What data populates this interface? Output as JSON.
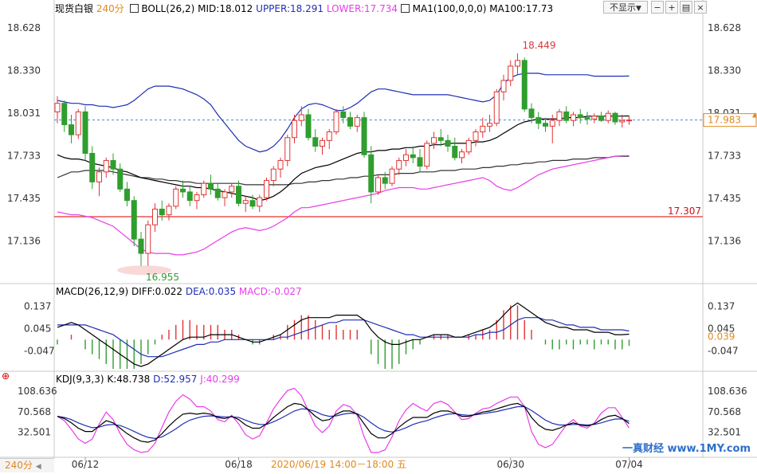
{
  "toolbar": {
    "symbol": "现货白银",
    "period": "240分",
    "hide_btn": "不显示",
    "hide_arrow": "▼"
  },
  "main_indicator": {
    "boll_label": "BOLL(26,2)",
    "mid": "MID:18.012",
    "upper": "UPPER:18.291",
    "lower": "LOWER:17.734",
    "ma_label": "MA1(100,0,0,0)",
    "ma100": "MA100:17.73",
    "colors": {
      "mid": "#000000",
      "upper": "#1f2fb5",
      "lower": "#e83de8",
      "ma": "#333333"
    }
  },
  "macd_indicator": {
    "label": "MACD(26,12,9)",
    "diff": "DIFF:0.022",
    "dea": "DEA:0.035",
    "macd": "MACD:-0.027",
    "current": "0.039"
  },
  "kdj_indicator": {
    "label": "KDJ(9,3,3)",
    "k": "K:48.738",
    "d": "D:52.957",
    "j": "J:40.299"
  },
  "bottom": {
    "period_tab": "240分",
    "crosshair_time": "2020/06/19 14:00－18:00 五",
    "logo": "一真财经 www.1MY.com"
  },
  "chart_data": [
    {
      "type": "candlestick",
      "name": "price",
      "ylim": [
        16.9,
        18.7
      ],
      "y_ticks": [
        18.628,
        18.33,
        18.031,
        17.733,
        17.435,
        17.136
      ],
      "current_price": 17.983,
      "hline": 17.307,
      "hline_label": "17.307",
      "high_label": "18.449",
      "low_label": "16.955",
      "x_labels": [
        {
          "i": 4,
          "label": "06/12"
        },
        {
          "i": 26,
          "label": "06/18"
        },
        {
          "i": 65,
          "label": "06/30"
        },
        {
          "i": 82,
          "label": "07/04"
        }
      ],
      "ohlc": [
        [
          18.04,
          18.15,
          17.96,
          18.1
        ],
        [
          18.1,
          18.12,
          17.9,
          17.95
        ],
        [
          17.95,
          18.02,
          17.82,
          17.88
        ],
        [
          17.88,
          18.06,
          17.85,
          18.04
        ],
        [
          18.04,
          18.08,
          17.7,
          17.75
        ],
        [
          17.75,
          17.8,
          17.5,
          17.55
        ],
        [
          17.55,
          17.65,
          17.45,
          17.62
        ],
        [
          17.62,
          17.72,
          17.58,
          17.7
        ],
        [
          17.7,
          17.75,
          17.6,
          17.64
        ],
        [
          17.64,
          17.68,
          17.48,
          17.5
        ],
        [
          17.5,
          17.55,
          17.38,
          17.42
        ],
        [
          17.42,
          17.45,
          17.1,
          17.15
        ],
        [
          17.15,
          17.2,
          16.96,
          17.05
        ],
        [
          17.05,
          17.28,
          16.96,
          17.25
        ],
        [
          17.25,
          17.4,
          17.2,
          17.36
        ],
        [
          17.36,
          17.42,
          17.28,
          17.32
        ],
        [
          17.32,
          17.4,
          17.28,
          17.38
        ],
        [
          17.38,
          17.52,
          17.36,
          17.5
        ],
        [
          17.5,
          17.56,
          17.44,
          17.48
        ],
        [
          17.48,
          17.52,
          17.38,
          17.42
        ],
        [
          17.42,
          17.48,
          17.36,
          17.46
        ],
        [
          17.46,
          17.56,
          17.44,
          17.54
        ],
        [
          17.54,
          17.6,
          17.46,
          17.5
        ],
        [
          17.5,
          17.54,
          17.42,
          17.44
        ],
        [
          17.44,
          17.5,
          17.38,
          17.48
        ],
        [
          17.48,
          17.54,
          17.44,
          17.52
        ],
        [
          17.52,
          17.56,
          17.38,
          17.4
        ],
        [
          17.4,
          17.45,
          17.34,
          17.42
        ],
        [
          17.42,
          17.46,
          17.36,
          17.38
        ],
        [
          17.38,
          17.46,
          17.34,
          17.44
        ],
        [
          17.44,
          17.58,
          17.42,
          17.56
        ],
        [
          17.56,
          17.66,
          17.52,
          17.64
        ],
        [
          17.64,
          17.72,
          17.58,
          17.7
        ],
        [
          17.7,
          17.88,
          17.66,
          17.86
        ],
        [
          17.86,
          18.02,
          17.82,
          17.98
        ],
        [
          17.98,
          18.08,
          17.94,
          18.02
        ],
        [
          18.02,
          18.06,
          17.84,
          17.86
        ],
        [
          17.86,
          17.92,
          17.76,
          17.8
        ],
        [
          17.8,
          17.86,
          17.74,
          17.84
        ],
        [
          17.84,
          17.92,
          17.78,
          17.9
        ],
        [
          17.9,
          18.06,
          17.88,
          18.04
        ],
        [
          18.04,
          18.08,
          17.96,
          18.0
        ],
        [
          18.0,
          18.04,
          17.92,
          17.94
        ],
        [
          17.94,
          18.02,
          17.9,
          18.0
        ],
        [
          18.0,
          18.04,
          17.72,
          17.74
        ],
        [
          17.74,
          17.8,
          17.4,
          17.48
        ],
        [
          17.48,
          17.6,
          17.46,
          17.58
        ],
        [
          17.58,
          17.62,
          17.5,
          17.54
        ],
        [
          17.54,
          17.66,
          17.52,
          17.64
        ],
        [
          17.64,
          17.72,
          17.6,
          17.7
        ],
        [
          17.7,
          17.78,
          17.66,
          17.74
        ],
        [
          17.74,
          17.8,
          17.68,
          17.72
        ],
        [
          17.72,
          17.78,
          17.62,
          17.66
        ],
        [
          17.66,
          17.84,
          17.64,
          17.82
        ],
        [
          17.82,
          17.9,
          17.78,
          17.86
        ],
        [
          17.86,
          17.92,
          17.8,
          17.84
        ],
        [
          17.84,
          17.88,
          17.76,
          17.8
        ],
        [
          17.8,
          17.86,
          17.7,
          17.72
        ],
        [
          17.72,
          17.78,
          17.68,
          17.76
        ],
        [
          17.76,
          17.86,
          17.74,
          17.84
        ],
        [
          17.84,
          17.92,
          17.8,
          17.9
        ],
        [
          17.9,
          18.0,
          17.86,
          17.94
        ],
        [
          17.94,
          18.02,
          17.9,
          17.96
        ],
        [
          17.96,
          18.2,
          17.94,
          18.18
        ],
        [
          18.18,
          18.3,
          18.12,
          18.26
        ],
        [
          18.26,
          18.4,
          18.22,
          18.36
        ],
        [
          18.36,
          18.449,
          18.3,
          18.4
        ],
        [
          18.4,
          18.42,
          18.04,
          18.06
        ],
        [
          18.06,
          18.1,
          17.96,
          18.0
        ],
        [
          18.0,
          18.04,
          17.92,
          17.96
        ],
        [
          17.96,
          18.0,
          17.9,
          17.94
        ],
        [
          17.94,
          18.02,
          17.82,
          17.98
        ],
        [
          17.98,
          18.06,
          17.94,
          18.04
        ],
        [
          18.04,
          18.08,
          17.96,
          17.98
        ],
        [
          17.98,
          18.04,
          17.94,
          18.02
        ],
        [
          18.02,
          18.06,
          17.96,
          18.0
        ],
        [
          18.0,
          18.04,
          17.95,
          17.99
        ],
        [
          17.99,
          18.03,
          17.96,
          18.01
        ],
        [
          18.01,
          18.04,
          17.97,
          17.98
        ],
        [
          17.98,
          18.05,
          17.96,
          18.03
        ],
        [
          18.03,
          18.04,
          17.95,
          17.97
        ],
        [
          17.97,
          18.02,
          17.93,
          17.98
        ],
        [
          17.98,
          18.01,
          17.95,
          17.983
        ]
      ],
      "mid": [
        17.74,
        17.72,
        17.71,
        17.71,
        17.7,
        17.68,
        17.67,
        17.66,
        17.65,
        17.63,
        17.62,
        17.6,
        17.58,
        17.57,
        17.56,
        17.55,
        17.54,
        17.53,
        17.52,
        17.52,
        17.51,
        17.51,
        17.5,
        17.49,
        17.48,
        17.47,
        17.46,
        17.45,
        17.44,
        17.42,
        17.43,
        17.45,
        17.48,
        17.52,
        17.57,
        17.61,
        17.63,
        17.65,
        17.66,
        17.67,
        17.69,
        17.71,
        17.73,
        17.75,
        17.76,
        17.76,
        17.77,
        17.77,
        17.78,
        17.78,
        17.79,
        17.79,
        17.8,
        17.8,
        17.81,
        17.81,
        17.82,
        17.82,
        17.82,
        17.82,
        17.83,
        17.83,
        17.84,
        17.86,
        17.89,
        17.92,
        17.95,
        17.97,
        17.98,
        17.99,
        17.99,
        17.99,
        17.99,
        18.0,
        18.0,
        18.0,
        18.01,
        18.01,
        18.01,
        18.01,
        18.01,
        18.01,
        18.012
      ],
      "upper": [
        18.12,
        18.11,
        18.1,
        18.1,
        18.09,
        18.09,
        18.08,
        18.08,
        18.07,
        18.08,
        18.09,
        18.12,
        18.16,
        18.2,
        18.22,
        18.22,
        18.22,
        18.21,
        18.2,
        18.18,
        18.16,
        18.13,
        18.09,
        18.02,
        17.96,
        17.9,
        17.84,
        17.8,
        17.78,
        17.76,
        17.77,
        17.8,
        17.85,
        17.92,
        18.0,
        18.06,
        18.09,
        18.1,
        18.09,
        18.07,
        18.05,
        18.05,
        18.07,
        18.1,
        18.14,
        18.18,
        18.2,
        18.2,
        18.19,
        18.18,
        18.17,
        18.16,
        18.16,
        18.16,
        18.16,
        18.16,
        18.16,
        18.15,
        18.14,
        18.13,
        18.12,
        18.11,
        18.12,
        18.16,
        18.24,
        18.28,
        18.3,
        18.31,
        18.31,
        18.31,
        18.3,
        18.3,
        18.3,
        18.3,
        18.3,
        18.3,
        18.3,
        18.29,
        18.29,
        18.29,
        18.29,
        18.29,
        18.291
      ],
      "lower": [
        17.34,
        17.33,
        17.32,
        17.32,
        17.31,
        17.3,
        17.28,
        17.26,
        17.24,
        17.2,
        17.16,
        17.12,
        17.08,
        17.06,
        17.05,
        17.05,
        17.05,
        17.04,
        17.04,
        17.05,
        17.06,
        17.08,
        17.11,
        17.14,
        17.17,
        17.2,
        17.22,
        17.23,
        17.22,
        17.21,
        17.22,
        17.24,
        17.27,
        17.3,
        17.34,
        17.37,
        17.37,
        17.38,
        17.39,
        17.4,
        17.41,
        17.42,
        17.43,
        17.44,
        17.45,
        17.46,
        17.47,
        17.49,
        17.5,
        17.51,
        17.51,
        17.51,
        17.5,
        17.5,
        17.51,
        17.52,
        17.53,
        17.54,
        17.55,
        17.56,
        17.57,
        17.58,
        17.56,
        17.52,
        17.5,
        17.49,
        17.51,
        17.54,
        17.57,
        17.6,
        17.62,
        17.64,
        17.65,
        17.66,
        17.67,
        17.68,
        17.69,
        17.7,
        17.71,
        17.72,
        17.73,
        17.733,
        17.734
      ],
      "ma100": [
        17.58,
        17.6,
        17.62,
        17.62,
        17.63,
        17.63,
        17.63,
        17.63,
        17.62,
        17.61,
        17.6,
        17.59,
        17.58,
        17.58,
        17.57,
        17.57,
        17.56,
        17.56,
        17.55,
        17.55,
        17.54,
        17.54,
        17.54,
        17.54,
        17.54,
        17.54,
        17.54,
        17.53,
        17.53,
        17.53,
        17.53,
        17.53,
        17.53,
        17.53,
        17.54,
        17.54,
        17.55,
        17.55,
        17.56,
        17.56,
        17.57,
        17.57,
        17.58,
        17.58,
        17.59,
        17.59,
        17.6,
        17.6,
        17.6,
        17.61,
        17.61,
        17.61,
        17.62,
        17.62,
        17.62,
        17.63,
        17.63,
        17.63,
        17.64,
        17.64,
        17.64,
        17.65,
        17.65,
        17.66,
        17.66,
        17.67,
        17.67,
        17.68,
        17.68,
        17.69,
        17.69,
        17.7,
        17.7,
        17.7,
        17.71,
        17.71,
        17.71,
        17.72,
        17.72,
        17.72,
        17.73,
        17.73,
        17.73
      ]
    },
    {
      "type": "macd",
      "name": "MACD",
      "y_ticks": [
        0.137,
        0.045,
        -0.047
      ],
      "ylim": [
        -0.11,
        0.19
      ],
      "diff": [
        0.05,
        0.06,
        0.07,
        0.06,
        0.04,
        0.02,
        0.0,
        -0.02,
        -0.04,
        -0.06,
        -0.08,
        -0.1,
        -0.11,
        -0.1,
        -0.08,
        -0.06,
        -0.04,
        -0.02,
        0.0,
        0.01,
        0.01,
        0.01,
        0.02,
        0.02,
        0.02,
        0.02,
        0.01,
        0.0,
        -0.01,
        -0.01,
        0.0,
        0.01,
        0.02,
        0.04,
        0.06,
        0.08,
        0.09,
        0.09,
        0.09,
        0.09,
        0.1,
        0.1,
        0.1,
        0.1,
        0.08,
        0.04,
        0.01,
        -0.01,
        -0.02,
        -0.02,
        -0.01,
        0.0,
        0.0,
        0.01,
        0.02,
        0.02,
        0.02,
        0.01,
        0.01,
        0.02,
        0.03,
        0.04,
        0.05,
        0.07,
        0.1,
        0.13,
        0.15,
        0.13,
        0.11,
        0.09,
        0.07,
        0.06,
        0.05,
        0.05,
        0.04,
        0.04,
        0.04,
        0.03,
        0.03,
        0.03,
        0.02,
        0.02,
        0.022
      ],
      "dea": [
        0.06,
        0.06,
        0.06,
        0.06,
        0.06,
        0.05,
        0.04,
        0.03,
        0.02,
        0.0,
        -0.02,
        -0.04,
        -0.06,
        -0.07,
        -0.07,
        -0.07,
        -0.06,
        -0.05,
        -0.04,
        -0.03,
        -0.02,
        -0.02,
        -0.01,
        -0.01,
        0.0,
        0.0,
        0.0,
        0.0,
        0.0,
        0.0,
        0.0,
        0.0,
        0.01,
        0.01,
        0.02,
        0.03,
        0.04,
        0.05,
        0.06,
        0.07,
        0.07,
        0.08,
        0.08,
        0.08,
        0.08,
        0.07,
        0.06,
        0.05,
        0.04,
        0.03,
        0.02,
        0.02,
        0.01,
        0.01,
        0.01,
        0.01,
        0.01,
        0.01,
        0.01,
        0.01,
        0.02,
        0.02,
        0.03,
        0.03,
        0.04,
        0.06,
        0.08,
        0.09,
        0.09,
        0.09,
        0.08,
        0.08,
        0.07,
        0.06,
        0.06,
        0.05,
        0.05,
        0.05,
        0.04,
        0.04,
        0.04,
        0.04,
        0.035
      ],
      "current": 0.039
    },
    {
      "type": "kdj",
      "name": "KDJ",
      "y_ticks": [
        108.636,
        70.568,
        32.501
      ],
      "ylim": [
        -5,
        125
      ],
      "k": [
        62,
        58,
        50,
        40,
        34,
        34,
        44,
        54,
        50,
        40,
        30,
        22,
        16,
        14,
        18,
        30,
        44,
        56,
        66,
        68,
        66,
        68,
        66,
        60,
        58,
        62,
        56,
        46,
        40,
        40,
        48,
        60,
        70,
        80,
        86,
        84,
        74,
        62,
        54,
        56,
        66,
        72,
        72,
        66,
        48,
        30,
        22,
        22,
        30,
        42,
        52,
        60,
        60,
        60,
        68,
        72,
        72,
        68,
        62,
        62,
        66,
        70,
        72,
        76,
        80,
        84,
        86,
        80,
        60,
        46,
        38,
        36,
        40,
        46,
        50,
        46,
        44,
        48,
        56,
        62,
        64,
        58,
        48.7
      ],
      "d": [
        62,
        60,
        56,
        50,
        45,
        41,
        42,
        46,
        47,
        45,
        40,
        34,
        28,
        23,
        21,
        24,
        31,
        39,
        48,
        55,
        59,
        62,
        63,
        62,
        61,
        61,
        60,
        55,
        50,
        47,
        47,
        52,
        58,
        65,
        72,
        76,
        75,
        71,
        65,
        62,
        63,
        66,
        68,
        67,
        60,
        50,
        41,
        35,
        33,
        36,
        41,
        47,
        51,
        54,
        59,
        63,
        66,
        67,
        65,
        64,
        65,
        67,
        69,
        71,
        74,
        77,
        80,
        80,
        73,
        64,
        55,
        49,
        46,
        46,
        47,
        47,
        46,
        47,
        50,
        54,
        57,
        57,
        53
      ],
      "j": [
        62,
        54,
        38,
        20,
        12,
        20,
        48,
        70,
        56,
        30,
        10,
        0,
        -5,
        -3,
        12,
        42,
        70,
        90,
        102,
        94,
        80,
        80,
        72,
        56,
        52,
        64,
        48,
        28,
        20,
        26,
        50,
        76,
        94,
        110,
        114,
        100,
        72,
        44,
        32,
        44,
        72,
        84,
        80,
        64,
        24,
        -5,
        -5,
        0,
        24,
        54,
        74,
        86,
        78,
        72,
        86,
        90,
        84,
        70,
        56,
        58,
        68,
        76,
        78,
        86,
        92,
        98,
        98,
        80,
        34,
        10,
        4,
        10,
        28,
        46,
        56,
        44,
        40,
        50,
        68,
        78,
        78,
        60,
        40.3
      ]
    }
  ]
}
